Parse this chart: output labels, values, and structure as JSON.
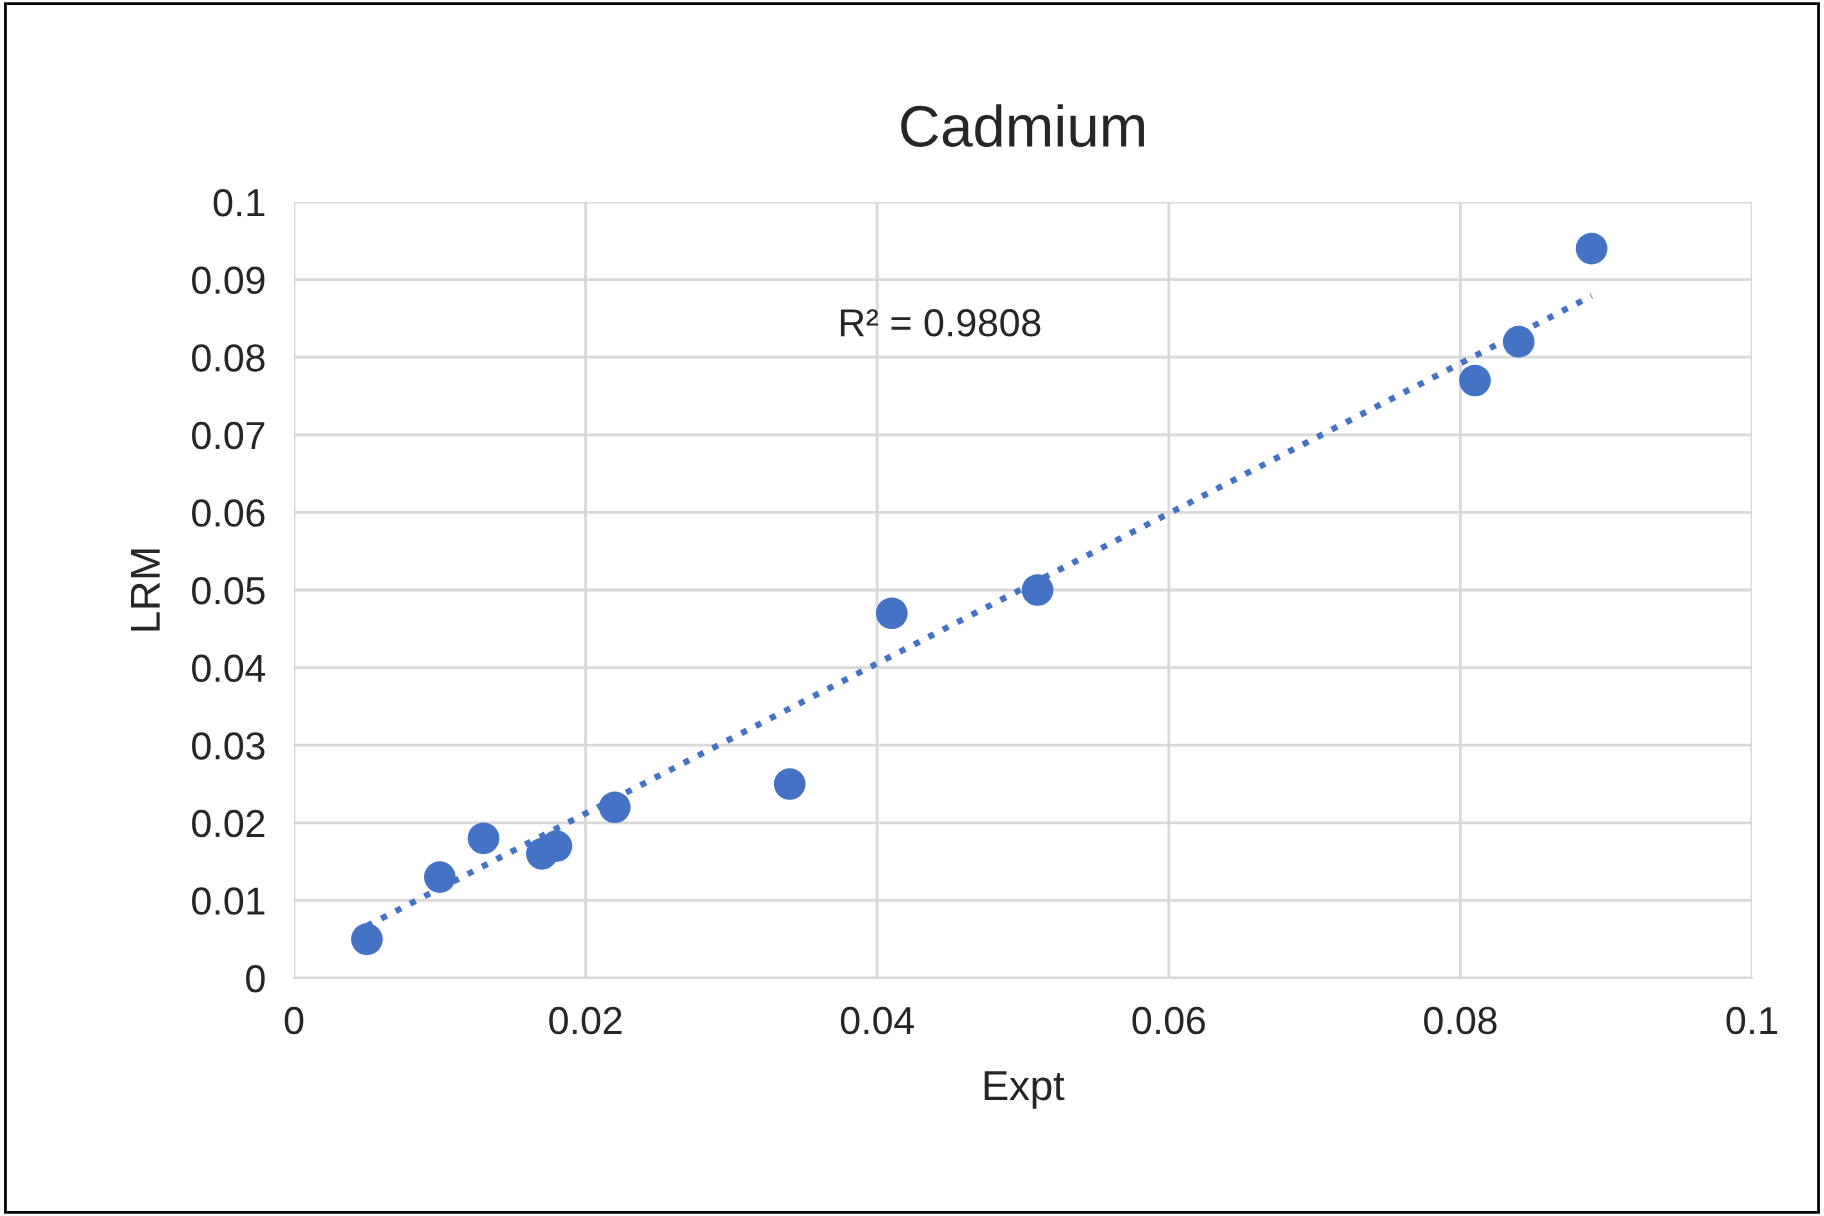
{
  "chart_data": {
    "type": "scatter",
    "title": "Cadmium",
    "xlabel": "Expt",
    "ylabel": "LRM",
    "series": [
      {
        "color": "#4472c4",
        "marker": "circle",
        "x": [
          0.005,
          0.01,
          0.013,
          0.017,
          0.018,
          0.022,
          0.034,
          0.041,
          0.051,
          0.081,
          0.084,
          0.089
        ],
        "values": [
          0.005,
          0.013,
          0.018,
          0.016,
          0.017,
          0.022,
          0.025,
          0.047,
          0.05,
          0.077,
          0.082,
          0.094
        ]
      },
      {
        "type": "line",
        "color": "#4472c4",
        "line_style": "dotted",
        "x": [
          0.005,
          0.089
        ],
        "values": [
          0.0067,
          0.0879
        ]
      }
    ],
    "annotations": [
      "R² = 0.9808"
    ],
    "xlim": [
      0,
      0.1
    ],
    "xticks": [
      0,
      0.02,
      0.04,
      0.06,
      0.08,
      0.1
    ],
    "ylim": [
      0,
      0.1
    ],
    "yticks": [
      0,
      0.01,
      0.02,
      0.03,
      0.04,
      0.05,
      0.06,
      0.07,
      0.08,
      0.09,
      0.1
    ],
    "grid": true,
    "legend": false
  }
}
